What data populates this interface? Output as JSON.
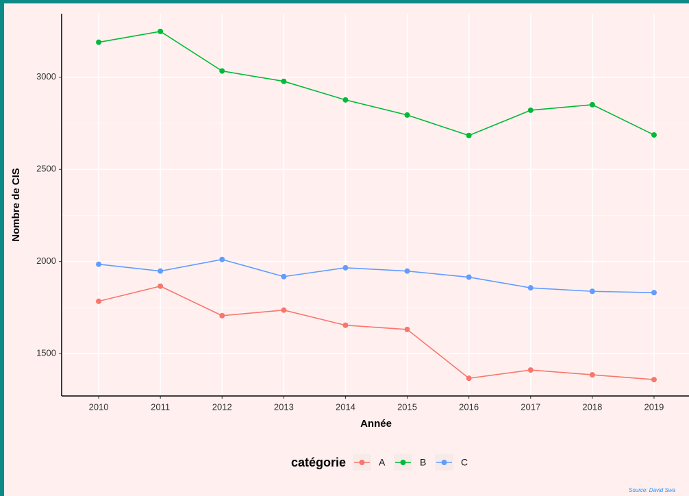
{
  "chart_data": {
    "type": "line",
    "x_label": "Année",
    "y_label": "Nombre de CIS",
    "x": [
      2010,
      2011,
      2012,
      2013,
      2014,
      2015,
      2016,
      2017,
      2018,
      2019
    ],
    "xlim": [
      2009.4,
      2019.6
    ],
    "xticks": [
      2010,
      2011,
      2012,
      2013,
      2014,
      2015,
      2016,
      2017,
      2018,
      2019
    ],
    "ylim": [
      1270,
      3345
    ],
    "yticks": [
      1500,
      2000,
      2500,
      3000
    ],
    "grid": true,
    "legend_title": "catégorie",
    "legend_position": "bottom",
    "series": [
      {
        "name": "A",
        "color": "#f8766d",
        "values": [
          1784,
          1866,
          1706,
          1736,
          1654,
          1631,
          1366,
          1411,
          1385,
          1359
        ]
      },
      {
        "name": "B",
        "color": "#00ba38",
        "values": [
          3190,
          3249,
          3034,
          2978,
          2877,
          2795,
          2684,
          2821,
          2851,
          2687
        ]
      },
      {
        "name": "C",
        "color": "#619cff",
        "values": [
          1985,
          1948,
          2011,
          1918,
          1966,
          1948,
          1915,
          1857,
          1838,
          1831
        ]
      }
    ],
    "caption": "Source: David Swa"
  }
}
